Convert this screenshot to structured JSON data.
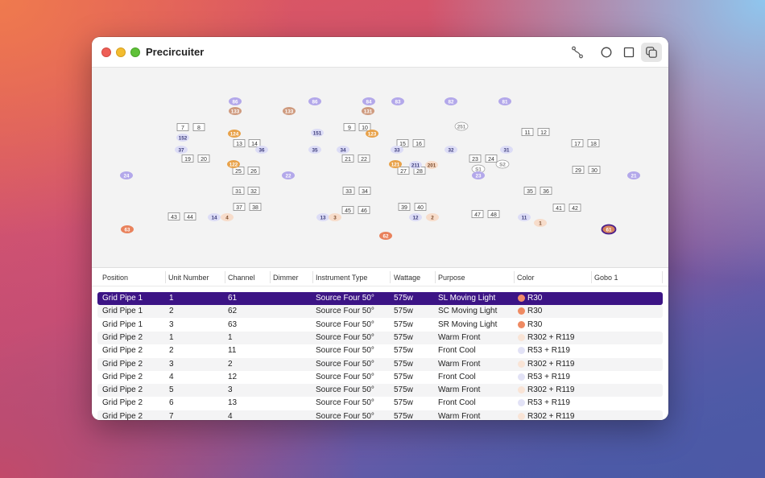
{
  "window": {
    "title": "Precircuiter"
  },
  "toolbar": [
    {
      "name": "connect-icon",
      "active": false
    },
    {
      "name": "circle-view-icon",
      "active": false
    },
    {
      "name": "square-view-icon",
      "active": false
    },
    {
      "name": "copy-icon",
      "active": true
    }
  ],
  "plot": {
    "colors": {
      "lavender": "#b3a8ea",
      "orange": "#e8a24a",
      "brown": "#cf9b7f",
      "peach": "#f7dcca",
      "lightblue": "#dcdcf6",
      "selected": "#4a1f8c"
    },
    "channels": [
      {
        "label": "86",
        "color": "lavender"
      },
      {
        "label": "133",
        "color": "brown"
      },
      {
        "label": "133",
        "color": "brown"
      },
      {
        "label": "86",
        "color": "lavender"
      },
      {
        "label": "84",
        "color": "lavender"
      },
      {
        "label": "131",
        "color": "brown"
      },
      {
        "label": "83",
        "color": "lavender"
      },
      {
        "label": "82",
        "color": "lavender"
      },
      {
        "label": "81",
        "color": "lavender"
      },
      {
        "label": "124",
        "color": "orange"
      },
      {
        "label": "152",
        "color": "lightblue"
      },
      {
        "label": "151",
        "color": "lightblue"
      },
      {
        "label": "123",
        "color": "orange"
      },
      {
        "label": "251",
        "color": "outline"
      },
      {
        "label": "37",
        "color": "lightblue"
      },
      {
        "label": "36",
        "color": "lightblue"
      },
      {
        "label": "35",
        "color": "lightblue"
      },
      {
        "label": "34",
        "color": "lightblue"
      },
      {
        "label": "33",
        "color": "lightblue"
      },
      {
        "label": "32",
        "color": "lightblue"
      },
      {
        "label": "31",
        "color": "lightblue"
      },
      {
        "label": "122",
        "color": "orange"
      },
      {
        "label": "121",
        "color": "orange"
      },
      {
        "label": "211",
        "color": "lightblue"
      },
      {
        "label": "201",
        "color": "peach"
      },
      {
        "label": "S1",
        "color": "outline"
      },
      {
        "label": "S2",
        "color": "outline"
      },
      {
        "label": "24",
        "color": "lavender"
      },
      {
        "label": "22",
        "color": "lavender"
      },
      {
        "label": "23",
        "color": "lavender"
      },
      {
        "label": "21",
        "color": "lavender"
      },
      {
        "label": "14",
        "color": "lightblue"
      },
      {
        "label": "4",
        "color": "peach"
      },
      {
        "label": "13",
        "color": "lightblue"
      },
      {
        "label": "3",
        "color": "peach"
      },
      {
        "label": "12",
        "color": "lightblue"
      },
      {
        "label": "2",
        "color": "peach"
      },
      {
        "label": "11",
        "color": "lightblue"
      },
      {
        "label": "1",
        "color": "peach"
      },
      {
        "label": "63",
        "color": "orangered"
      },
      {
        "label": "62",
        "color": "orangered"
      },
      {
        "label": "61",
        "color": "selected"
      }
    ],
    "units": [
      "7",
      "8",
      "13",
      "14",
      "9",
      "10",
      "15",
      "16",
      "11",
      "12",
      "17",
      "18",
      "19",
      "20",
      "21",
      "22",
      "23",
      "24",
      "25",
      "26",
      "27",
      "28",
      "29",
      "30",
      "31",
      "32",
      "33",
      "34",
      "35",
      "36",
      "37",
      "38",
      "45",
      "46",
      "39",
      "40",
      "41",
      "42",
      "43",
      "44",
      "47",
      "48"
    ]
  },
  "table": {
    "columns": [
      "Position",
      "Unit Number",
      "Channel",
      "Dimmer",
      "Instrument Type",
      "Wattage",
      "Purpose",
      "Color",
      "Gobo 1"
    ],
    "rows": [
      {
        "position": "Grid Pipe 1",
        "unit": "1",
        "channel": "61",
        "dimmer": "",
        "type": "Source Four 50°",
        "wattage": "575w",
        "purpose": "SL Moving Light",
        "color": "R30",
        "swatch": "#f08a6a",
        "selected": true
      },
      {
        "position": "Grid Pipe 1",
        "unit": "2",
        "channel": "62",
        "dimmer": "",
        "type": "Source Four 50°",
        "wattage": "575w",
        "purpose": "SC Moving Light",
        "color": "R30",
        "swatch": "#ef8a62"
      },
      {
        "position": "Grid Pipe 1",
        "unit": "3",
        "channel": "63",
        "dimmer": "",
        "type": "Source Four 50°",
        "wattage": "575w",
        "purpose": "SR Moving Light",
        "color": "R30",
        "swatch": "#ef8a62"
      },
      {
        "position": "Grid Pipe 2",
        "unit": "1",
        "channel": "1",
        "dimmer": "",
        "type": "Source Four 50°",
        "wattage": "575w",
        "purpose": "Warm Front",
        "color": "R302 + R119",
        "swatch": "#f9e4d6"
      },
      {
        "position": "Grid Pipe 2",
        "unit": "2",
        "channel": "11",
        "dimmer": "",
        "type": "Source Four 50°",
        "wattage": "575w",
        "purpose": "Front Cool",
        "color": "R53 + R119",
        "swatch": "#e2e2f6"
      },
      {
        "position": "Grid Pipe 2",
        "unit": "3",
        "channel": "2",
        "dimmer": "",
        "type": "Source Four 50°",
        "wattage": "575w",
        "purpose": "Warm Front",
        "color": "R302 + R119",
        "swatch": "#f9e4d6"
      },
      {
        "position": "Grid Pipe 2",
        "unit": "4",
        "channel": "12",
        "dimmer": "",
        "type": "Source Four 50°",
        "wattage": "575w",
        "purpose": "Front Cool",
        "color": "R53 + R119",
        "swatch": "#e2e2f6"
      },
      {
        "position": "Grid Pipe 2",
        "unit": "5",
        "channel": "3",
        "dimmer": "",
        "type": "Source Four 50°",
        "wattage": "575w",
        "purpose": "Warm Front",
        "color": "R302 + R119",
        "swatch": "#f9e4d6"
      },
      {
        "position": "Grid Pipe 2",
        "unit": "6",
        "channel": "13",
        "dimmer": "",
        "type": "Source Four 50°",
        "wattage": "575w",
        "purpose": "Front Cool",
        "color": "R53 + R119",
        "swatch": "#e2e2f6"
      },
      {
        "position": "Grid Pipe 2",
        "unit": "7",
        "channel": "4",
        "dimmer": "",
        "type": "Source Four 50°",
        "wattage": "575w",
        "purpose": "Warm Front",
        "color": "R302 + R119",
        "swatch": "#f9e4d6"
      }
    ]
  }
}
